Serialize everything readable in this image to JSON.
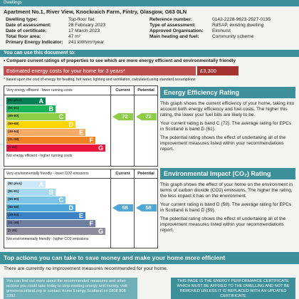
{
  "header": {
    "section": "Dwellings",
    "address": "Apartment No.1, River View, Knockraich Farm, Fintry, Glasgow, G63 0LN"
  },
  "details": {
    "left": [
      {
        "label": "Dwelling type:",
        "value": "Top-floor flat"
      },
      {
        "label": "Date of assessment:",
        "value": "28 February 2023"
      },
      {
        "label": "Date of certificate:",
        "value": "17 March 2023"
      },
      {
        "label": "Total floor area:",
        "value": "47 m²"
      },
      {
        "label": "Primary Energy Indicator:",
        "value": "241 kWh/m²/year"
      }
    ],
    "right": [
      {
        "label": "Reference number:",
        "value": "0142-2228-9623-2527-0135"
      },
      {
        "label": "Type of assessment:",
        "value": "RdSAP, existing dwelling"
      },
      {
        "label": "Approved Organisation:",
        "value": "Elmhurst"
      },
      {
        "label": "Main heating and fuel:",
        "value": "Community scheme"
      }
    ]
  },
  "uses": {
    "title": "You can use this document to:",
    "bullet": "• Compare current ratings of properties to see which are more energy efficient and environmentally friendly"
  },
  "cost": {
    "label": "Estimated energy costs for your home for 3 years*",
    "value": "£3,300",
    "footnote": "* based upon the cost of energy for heating, hot water, lighting and ventilation, calculated using standard assumptions"
  },
  "energy_chart": {
    "top_note": "Very energy efficient - lower running costs",
    "bottom_note": "Not energy efficient - higher running costs",
    "column_current": "Current",
    "column_potential": "Potential",
    "bands": [
      {
        "range": "(92 plus)",
        "letter": "A"
      },
      {
        "range": "(81-91)",
        "letter": "B"
      },
      {
        "range": "(69-80)",
        "letter": "C"
      },
      {
        "range": "(55-68)",
        "letter": "D"
      },
      {
        "range": "(39-54)",
        "letter": "E"
      },
      {
        "range": "(21-38)",
        "letter": "F"
      },
      {
        "range": "(1-20)",
        "letter": "G"
      }
    ],
    "current": 72,
    "potential": 72
  },
  "energy_panel": {
    "title": "Energy Efficiency Rating",
    "paragraphs": [
      "This graph shows the current efficiency of your home, taking into account both energy efficiency and fuel costs. The higher this rating, the lower your fuel bills are likely to be.",
      "Your current rating is band C (72). The average rating for EPCs in Scotland is band D (61).",
      "The potential rating shows the effect of undertaking all of the improvement measures listed within your recommendations report."
    ]
  },
  "env_chart": {
    "top_note": "Very environmentally friendly - lower CO2 emissions",
    "bottom_note": "Not environmentally friendly - higher CO2 emissions",
    "column_current": "Current",
    "column_potential": "Potential",
    "bands": [
      {
        "range": "(92 plus)",
        "letter": "A"
      },
      {
        "range": "(81-91)",
        "letter": "B"
      },
      {
        "range": "(69-80)",
        "letter": "C"
      },
      {
        "range": "(55-68)",
        "letter": "D"
      },
      {
        "range": "(39-54)",
        "letter": "E"
      },
      {
        "range": "(21-38)",
        "letter": "F"
      },
      {
        "range": "(1-20)",
        "letter": "G"
      }
    ],
    "current": 58,
    "potential": 58
  },
  "env_panel": {
    "title": "Environmental Impact (CO₂) Rating",
    "paragraphs": [
      "This graph shows the effect of your home on the environment in terms of carbon dioxide (CO2) emissions. The higher the rating, the less impact it has on the environment.",
      "Your current rating is band D (58). The average rating for EPCs in Scotland is band D (59).",
      "The potential rating shows the effect of undertaking all of the improvement measures listed within your recommendations report."
    ]
  },
  "actions": {
    "title": "Top actions you can take to save money and make your home more efficient",
    "note": "There are currently no improvement measures recommended for your home.",
    "more_info": "You can find out more about the recommended measures and other actions you could take today to stop wasting energy and money, visit greenerscotland.org or contact Home Energy Scotland on 0808 808 2282.",
    "notice": "THIS PAGE IS THE ENERGY PERFORMANCE CERTIFICATE WHICH MUST BE AFFIXED TO THE DWELLING AND NOT BE REMOVED UNLESS IT IS REPLACED WITH AN UPDATED CERTIFICATE"
  }
}
